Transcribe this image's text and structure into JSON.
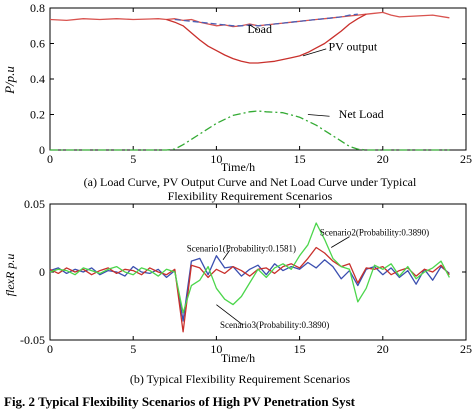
{
  "chart_data": [
    {
      "type": "line",
      "xlabel": "Time/h",
      "ylabel": "P/p.u",
      "xlim": [
        0,
        25
      ],
      "ylim": [
        0,
        0.8
      ],
      "xticks": [
        "0",
        "5",
        "10",
        "15",
        "20",
        "25"
      ],
      "yticks": [
        "0",
        "0.2",
        "0.4",
        "0.6",
        "0.8"
      ],
      "caption": "(a) Load Curve, PV Output Curve and Net Load Curve under Typical Flexibility Requirement Scenarios",
      "caption_lines": [
        "(a) Load Curve, PV Output Curve and Net Load Curve under Typical",
        "Flexibility Requirement Scenarios"
      ],
      "grid": false,
      "series": [
        {
          "name": "Load",
          "color": "#d9534f",
          "dash": "none",
          "x": [
            0,
            1,
            2,
            3,
            4,
            5,
            6,
            6.5,
            7,
            7.5,
            8,
            8.5,
            9,
            9.5,
            10,
            10.5,
            11,
            11.5,
            12,
            12.5,
            13,
            13.5,
            14,
            14.5,
            15,
            15.5,
            16,
            16.5,
            17,
            17.5,
            18,
            18.5,
            19,
            19.5,
            20,
            20.5,
            21,
            22,
            23,
            24
          ],
          "values": [
            0.735,
            0.73,
            0.74,
            0.735,
            0.74,
            0.735,
            0.738,
            0.74,
            0.735,
            0.74,
            0.73,
            0.735,
            0.72,
            0.71,
            0.7,
            0.705,
            0.695,
            0.7,
            0.71,
            0.7,
            0.705,
            0.71,
            0.715,
            0.72,
            0.725,
            0.73,
            0.735,
            0.74,
            0.745,
            0.75,
            0.755,
            0.76,
            0.765,
            0.77,
            0.775,
            0.76,
            0.75,
            0.755,
            0.76,
            0.745
          ]
        },
        {
          "name": "PV output",
          "color": "#c9302c",
          "dash": "none",
          "x": [
            7,
            7.5,
            8,
            8.5,
            9,
            9.5,
            10,
            10.5,
            11,
            11.5,
            12,
            12.5,
            13,
            13.5,
            14,
            14.5,
            15,
            15.5,
            16,
            16.5,
            17,
            17.5,
            18,
            18.5,
            19
          ],
          "values": [
            0.735,
            0.72,
            0.7,
            0.66,
            0.62,
            0.585,
            0.56,
            0.535,
            0.515,
            0.5,
            0.49,
            0.49,
            0.495,
            0.5,
            0.51,
            0.52,
            0.53,
            0.55,
            0.575,
            0.6,
            0.635,
            0.67,
            0.71,
            0.74,
            0.765
          ]
        },
        {
          "name": "Load",
          "legend_label": "Load",
          "color": "#4a5fb5",
          "dash": "6,3",
          "x": [
            7.5,
            8,
            8.5,
            9,
            9.5,
            10,
            10.5,
            11,
            11.5,
            12,
            12.5,
            13,
            13.5,
            14,
            14.5,
            15,
            15.5,
            16,
            16.5,
            17,
            17.5,
            18,
            18.5
          ],
          "values": [
            0.735,
            0.73,
            0.725,
            0.72,
            0.715,
            0.71,
            0.705,
            0.7,
            0.7,
            0.705,
            0.7,
            0.705,
            0.71,
            0.715,
            0.72,
            0.725,
            0.73,
            0.735,
            0.74,
            0.745,
            0.75,
            0.76,
            0.765
          ]
        },
        {
          "name": "Net Load",
          "color": "#33aa33",
          "dash": "8,3,2,3",
          "x": [
            0,
            2,
            4,
            6,
            7,
            7.5,
            8,
            9,
            10,
            11,
            12,
            12.5,
            13,
            14,
            15,
            16,
            17,
            18,
            18.5,
            19,
            20,
            22,
            24
          ],
          "values": [
            0,
            0,
            0,
            0,
            0,
            0.005,
            0.03,
            0.09,
            0.15,
            0.195,
            0.215,
            0.22,
            0.215,
            0.21,
            0.185,
            0.14,
            0.08,
            0.02,
            0.005,
            0,
            0,
            0,
            0
          ]
        }
      ],
      "annotations": [
        {
          "text": "Load",
          "x": 12.6,
          "y": 0.66
        },
        {
          "text": "PV output",
          "x": 18.2,
          "y": 0.56
        },
        {
          "text": "Net Load",
          "x": 18.7,
          "y": 0.18
        }
      ]
    },
    {
      "type": "line",
      "xlabel": "Time/h",
      "ylabel": "flexR p.u",
      "xlim": [
        0,
        25
      ],
      "ylim": [
        -0.05,
        0.05
      ],
      "xticks": [
        "0",
        "5",
        "10",
        "15",
        "20",
        "25"
      ],
      "yticks": [
        "-0.05",
        "0",
        "0.05"
      ],
      "caption": "(b) Typical Flexibility Requirement Scenarios",
      "grid": false,
      "x": [
        0,
        0.5,
        1,
        1.5,
        2,
        2.5,
        3,
        3.5,
        4,
        4.5,
        5,
        5.5,
        6,
        6.5,
        7,
        7.5,
        8,
        8.5,
        9,
        9.5,
        10,
        10.5,
        11,
        11.5,
        12,
        12.5,
        13,
        13.5,
        14,
        14.5,
        15,
        15.5,
        16,
        16.5,
        17,
        17.5,
        18,
        18.5,
        19,
        19.5,
        20,
        20.5,
        21,
        21.5,
        22,
        22.5,
        23,
        23.5,
        24
      ],
      "series": [
        {
          "name": "Scenario1(Probability:0.1581)",
          "color": "#3b4fb0",
          "values": [
            0.001,
            0.003,
            -0.001,
            0.002,
            0.0,
            0.003,
            -0.002,
            0.001,
            0.0,
            -0.003,
            0.004,
            0.0,
            -0.001,
            0.002,
            -0.004,
            0.001,
            -0.036,
            0.008,
            0.01,
            -0.002,
            0.012,
            0.003,
            0.004,
            -0.003,
            0.002,
            0.005,
            -0.002,
            0.006,
            0.001,
            0.004,
            0.002,
            0.007,
            0.003,
            0.009,
            0.004,
            -0.005,
            0.001,
            -0.01,
            0.002,
            0.004,
            -0.002,
            0.003,
            -0.004,
            0.001,
            -0.009,
            0.002,
            -0.006,
            0.004,
            -0.001
          ]
        },
        {
          "name": "Scenario2(Probability:0.3890)",
          "color": "#c9302c",
          "values": [
            0.002,
            -0.001,
            0.003,
            0.0,
            0.002,
            -0.002,
            0.001,
            0.003,
            -0.001,
            0.002,
            0.001,
            -0.002,
            0.003,
            0.0,
            -0.002,
            0.002,
            -0.044,
            0.005,
            0.003,
            -0.004,
            0.002,
            -0.001,
            0.004,
            0.001,
            -0.003,
            0.002,
            0.003,
            -0.001,
            0.004,
            0.006,
            0.003,
            0.01,
            0.018,
            0.014,
            0.008,
            0.004,
            0.006,
            -0.008,
            0.003,
            0.002,
            0.004,
            -0.002,
            0.001,
            0.003,
            -0.003,
            0.002,
            0.0,
            0.005,
            -0.002
          ]
        },
        {
          "name": "Scenario3(Probability:0.3890)",
          "color": "#4cd64c",
          "values": [
            0.0,
            0.002,
            0.001,
            -0.002,
            0.003,
            0.001,
            -0.001,
            0.002,
            0.004,
            0.0,
            -0.002,
            0.003,
            0.001,
            -0.003,
            0.002,
            0.0,
            -0.03,
            -0.01,
            -0.006,
            0.004,
            -0.012,
            -0.02,
            -0.024,
            -0.018,
            -0.008,
            0.002,
            -0.004,
            0.003,
            0.006,
            0.002,
            0.012,
            0.02,
            0.036,
            0.024,
            0.01,
            0.004,
            0.002,
            -0.022,
            -0.012,
            0.005,
            0.002,
            0.006,
            -0.003,
            0.004,
            -0.005,
            0.0,
            0.003,
            0.008,
            -0.004
          ]
        }
      ],
      "annotations": [
        {
          "text": "Scenario1(Probability:0.1581)",
          "x": 11.5,
          "y": 0.015
        },
        {
          "text": "Scenario2(Probability:0.3890)",
          "x": 19.5,
          "y": 0.027
        },
        {
          "text": "Scenario3(Probability:0.3890)",
          "x": 13.5,
          "y": -0.041
        }
      ]
    }
  ],
  "footer_caption": "Fig. 2   Typical Flexibility Scenarios of High PV Penetration Syst"
}
